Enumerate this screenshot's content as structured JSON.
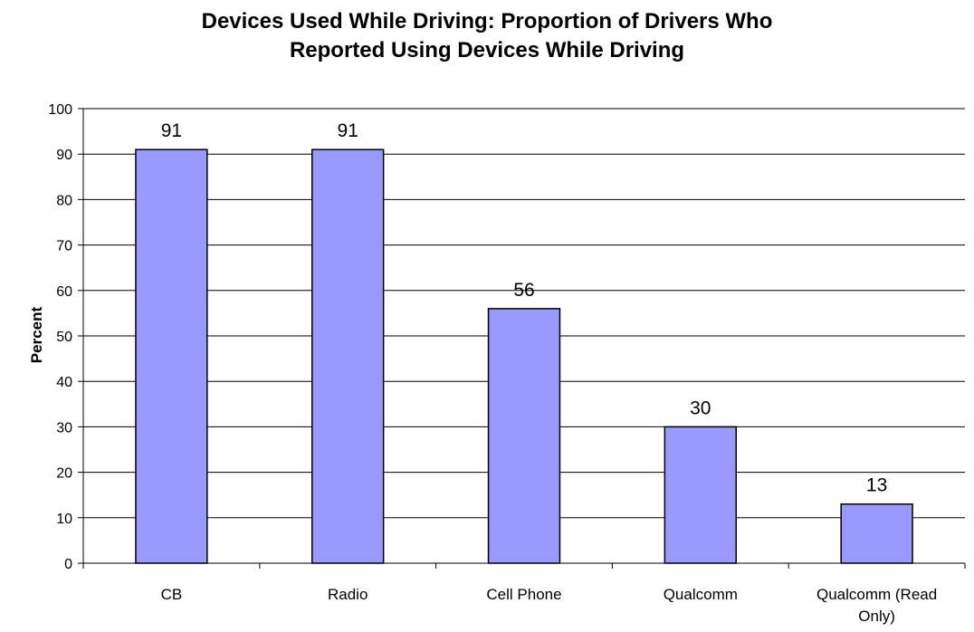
{
  "chart_data": {
    "type": "bar",
    "title_line1": "Devices Used While Driving: Proportion of Drivers Who",
    "title_line2": "Reported Using Devices While Driving",
    "xlabel": "",
    "ylabel": "Percent",
    "categories": [
      "CB",
      "Radio",
      "Cell Phone",
      "Qualcomm",
      "Qualcomm (Read Only)"
    ],
    "category_label_lines": [
      [
        "CB"
      ],
      [
        "Radio"
      ],
      [
        "Cell Phone"
      ],
      [
        "Qualcomm"
      ],
      [
        "Qualcomm (Read",
        "Only)"
      ]
    ],
    "values": [
      91,
      91,
      56,
      30,
      13
    ],
    "data_labels": [
      "91",
      "91",
      "56",
      "30",
      "13"
    ],
    "ylim": [
      0,
      100
    ],
    "yticks": [
      0,
      10,
      20,
      30,
      40,
      50,
      60,
      70,
      80,
      90,
      100
    ],
    "grid": true,
    "legend": "none",
    "bar_color": "#9999ff",
    "bar_stroke": "#000000"
  }
}
